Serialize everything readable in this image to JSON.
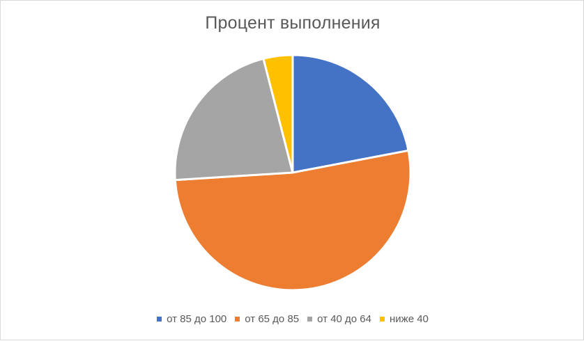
{
  "chart_data": {
    "type": "pie",
    "title": "Процент выполнения",
    "categories": [
      "от 85 до 100",
      "от 65 до 85",
      "от 40 до 64",
      "ниже 40"
    ],
    "values": [
      22,
      52,
      22,
      4
    ],
    "colors": [
      "#4472c4",
      "#ed7d31",
      "#a5a5a5",
      "#ffc000"
    ],
    "legend_position": "bottom",
    "start_angle": "12 o'clock",
    "direction": "clockwise"
  }
}
